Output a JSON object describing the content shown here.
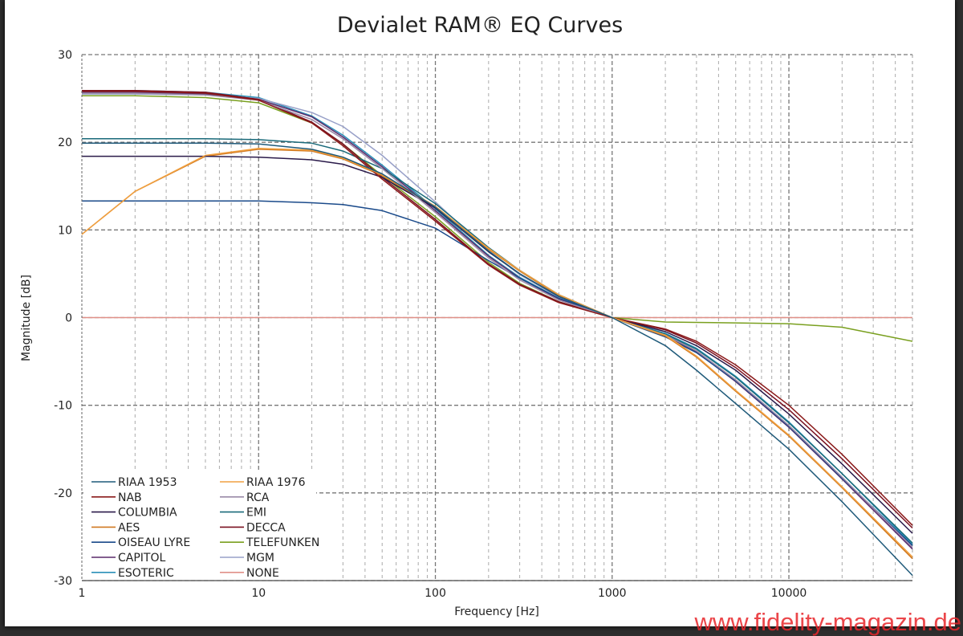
{
  "chart_data": {
    "type": "line",
    "title": "Devialet RAM® EQ Curves",
    "xlabel": "Frequency [Hz]",
    "ylabel": "Magnitude [dB]",
    "xscale": "log",
    "xlim": [
      1,
      50000
    ],
    "ylim": [
      -30,
      30
    ],
    "xticks": [
      1,
      10,
      100,
      1000,
      10000
    ],
    "xtick_labels": [
      "1",
      "10",
      "100",
      "1000",
      "10000"
    ],
    "yticks": [
      30,
      20,
      10,
      0,
      -10,
      -20,
      -30
    ],
    "ytick_labels": [
      "30",
      "20",
      "10",
      "0",
      "-10",
      "-20",
      "-30"
    ],
    "grid": true,
    "legend_position": "bottom-left",
    "x": [
      1,
      2,
      5,
      10,
      20,
      30,
      50,
      100,
      200,
      300,
      500,
      1000,
      2000,
      3000,
      5000,
      10000,
      20000,
      50000
    ],
    "series": [
      {
        "name": "RIAA 1953",
        "color": "#1f5a7a",
        "values": [
          19.9,
          19.9,
          19.9,
          19.8,
          19.2,
          18.3,
          16.4,
          12.6,
          7.6,
          5.0,
          2.4,
          0,
          -3.2,
          -6.0,
          -9.8,
          -15.0,
          -21.0,
          -29.4
        ]
      },
      {
        "name": "RIAA 1976",
        "color": "#f0a040",
        "values": [
          9.5,
          14.4,
          18.5,
          19.3,
          19.1,
          18.2,
          16.3,
          12.7,
          7.9,
          5.4,
          2.6,
          0,
          -2.0,
          -4.4,
          -8.3,
          -13.4,
          -19.3,
          -27.3
        ]
      },
      {
        "name": "NAB",
        "color": "#8b1a1a",
        "values": [
          25.8,
          25.8,
          25.6,
          24.8,
          22.2,
          19.6,
          15.8,
          11.0,
          6.0,
          3.7,
          1.7,
          0,
          -1.3,
          -2.7,
          -5.4,
          -10.0,
          -15.6,
          -23.7
        ]
      },
      {
        "name": "RCA",
        "color": "#9a8aa8",
        "values": [
          25.6,
          25.6,
          25.4,
          24.8,
          22.6,
          20.4,
          17.0,
          12.0,
          6.8,
          4.3,
          2.0,
          0,
          -2.0,
          -3.8,
          -7.1,
          -12.3,
          -18.2,
          -26.2
        ]
      },
      {
        "name": "COLUMBIA",
        "color": "#2a1a4a",
        "values": [
          18.4,
          18.4,
          18.4,
          18.3,
          18.0,
          17.5,
          16.0,
          12.5,
          7.5,
          5.0,
          2.4,
          0,
          -1.6,
          -3.2,
          -6.0,
          -11.0,
          -16.7,
          -24.6
        ]
      },
      {
        "name": "EMI",
        "color": "#1a6a7a",
        "values": [
          20.4,
          20.4,
          20.4,
          20.3,
          19.9,
          19.0,
          17.0,
          13.0,
          8.0,
          5.4,
          2.6,
          0,
          -1.9,
          -3.6,
          -6.8,
          -12.0,
          -17.8,
          -25.7
        ]
      },
      {
        "name": "AES",
        "color": "#d07820",
        "values": [
          9.5,
          14.4,
          18.4,
          19.2,
          19.0,
          18.1,
          16.2,
          12.6,
          7.8,
          5.3,
          2.5,
          0,
          -2.1,
          -4.5,
          -8.4,
          -13.5,
          -19.4,
          -27.5
        ]
      },
      {
        "name": "DECCA",
        "color": "#7a1020",
        "values": [
          25.9,
          25.9,
          25.7,
          24.9,
          22.3,
          19.8,
          16.0,
          11.2,
          6.1,
          3.8,
          1.8,
          0,
          -1.4,
          -2.9,
          -5.7,
          -10.5,
          -16.1,
          -24.0
        ]
      },
      {
        "name": "OISEAU LYRE",
        "color": "#1a4a8a",
        "values": [
          13.3,
          13.3,
          13.3,
          13.3,
          13.1,
          12.9,
          12.2,
          10.2,
          6.5,
          4.5,
          2.2,
          0,
          -2.2,
          -4.0,
          -7.2,
          -12.4,
          -18.3,
          -26.0
        ]
      },
      {
        "name": "TELEFUNKEN",
        "color": "#7aa020",
        "values": [
          25.3,
          25.3,
          25.1,
          24.5,
          22.2,
          19.8,
          16.2,
          11.5,
          6.3,
          3.9,
          1.8,
          0,
          -0.5,
          -0.55,
          -0.6,
          -0.7,
          -1.1,
          -2.7
        ]
      },
      {
        "name": "CAPITOL",
        "color": "#5a2a6a",
        "values": [
          25.7,
          25.7,
          25.5,
          24.9,
          22.9,
          20.6,
          17.2,
          12.2,
          7.0,
          4.5,
          2.1,
          0,
          -2.1,
          -3.9,
          -7.3,
          -12.5,
          -18.4,
          -26.4
        ]
      },
      {
        "name": "MGM",
        "color": "#98a0c8",
        "values": [
          25.5,
          25.5,
          25.4,
          25.0,
          23.4,
          21.8,
          18.5,
          13.2,
          7.6,
          4.9,
          2.3,
          0,
          -2.0,
          -3.8,
          -7.2,
          -12.4,
          -18.3,
          -26.3
        ]
      },
      {
        "name": "ESOTERIC",
        "color": "#2a90b8",
        "values": [
          25.9,
          25.9,
          25.7,
          25.1,
          23.0,
          20.8,
          17.4,
          12.4,
          7.1,
          4.6,
          2.2,
          0,
          -1.8,
          -3.5,
          -6.7,
          -11.9,
          -17.8,
          -25.9
        ]
      },
      {
        "name": "NONE",
        "color": "#e09088",
        "values": [
          0,
          0,
          0,
          0,
          0,
          0,
          0,
          0,
          0,
          0,
          0,
          0,
          0,
          0,
          0,
          0,
          0,
          0
        ]
      }
    ]
  },
  "watermark": "www.fidelity-magazin.de"
}
